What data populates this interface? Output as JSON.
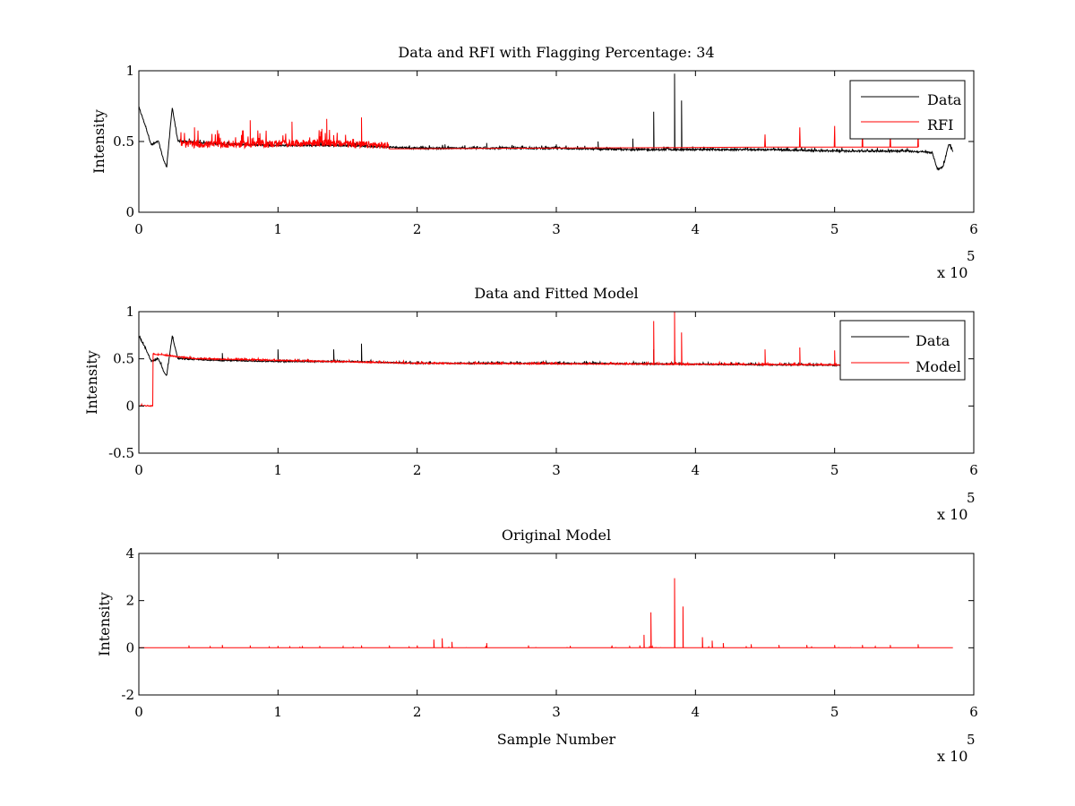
{
  "colors": {
    "data": "#000000",
    "rfi": "#ff0000",
    "model": "#ff0000",
    "axes": "#000000",
    "background": "#ffffff"
  },
  "chart_data": [
    {
      "type": "line",
      "title": "Data and RFI with Flagging Percentage: 34",
      "xlabel": "",
      "ylabel": "Intensity",
      "xlim": [
        0,
        600000
      ],
      "ylim": [
        0,
        1
      ],
      "xticks": [
        "0",
        "1",
        "2",
        "3",
        "4",
        "5",
        "6"
      ],
      "yticks": [
        "0",
        "0.5",
        "1"
      ],
      "x_multiplier": "x 10",
      "x_multiplier_exponent": "5",
      "legend": {
        "placement": "top-right",
        "entries": [
          "Data",
          "RFI"
        ]
      },
      "grid": false,
      "series": [
        {
          "name": "Data",
          "color": "#000000",
          "baseline": [
            [
              0,
              0.74
            ],
            [
              5000,
              0.6
            ],
            [
              9000,
              0.47
            ],
            [
              14000,
              0.5
            ],
            [
              18000,
              0.36
            ],
            [
              20000,
              0.32
            ],
            [
              24000,
              0.74
            ],
            [
              28000,
              0.5
            ],
            [
              60000,
              0.48
            ],
            [
              100000,
              0.47
            ],
            [
              150000,
              0.47
            ],
            [
              200000,
              0.45
            ],
            [
              300000,
              0.45
            ],
            [
              350000,
              0.44
            ],
            [
              400000,
              0.44
            ],
            [
              450000,
              0.44
            ],
            [
              500000,
              0.43
            ],
            [
              550000,
              0.43
            ],
            [
              570000,
              0.42
            ],
            [
              574000,
              0.3
            ],
            [
              578000,
              0.32
            ],
            [
              582000,
              0.48
            ],
            [
              585000,
              0.43
            ]
          ],
          "spikes": [
            [
              370000,
              0.71
            ],
            [
              385000,
              0.98
            ],
            [
              390000,
              0.79
            ],
            [
              355000,
              0.52
            ],
            [
              330000,
              0.5
            ],
            [
              300000,
              0.48
            ],
            [
              250000,
              0.49
            ],
            [
              220000,
              0.48
            ]
          ]
        },
        {
          "name": "RFI",
          "color": "#ff0000",
          "baseline": [
            [
              30000,
              0.47
            ],
            [
              80000,
              0.47
            ],
            [
              130000,
              0.48
            ],
            [
              180000,
              0.46
            ]
          ],
          "spikes": [
            [
              40000,
              0.6
            ],
            [
              80000,
              0.65
            ],
            [
              110000,
              0.64
            ],
            [
              135000,
              0.66
            ],
            [
              160000,
              0.67
            ],
            [
              450000,
              0.55
            ],
            [
              475000,
              0.6
            ],
            [
              500000,
              0.61
            ],
            [
              520000,
              0.59
            ],
            [
              540000,
              0.55
            ],
            [
              560000,
              0.56
            ]
          ]
        }
      ]
    },
    {
      "type": "line",
      "title": "Data and Fitted Model",
      "xlabel": "",
      "ylabel": "Intensity",
      "xlim": [
        0,
        600000
      ],
      "ylim": [
        -0.5,
        1
      ],
      "xticks": [
        "0",
        "1",
        "2",
        "3",
        "4",
        "5",
        "6"
      ],
      "yticks": [
        "-0.5",
        "0",
        "0.5",
        "1"
      ],
      "x_multiplier": "x 10",
      "x_multiplier_exponent": "5",
      "legend": {
        "placement": "top-right",
        "entries": [
          "Data",
          "Model"
        ]
      },
      "grid": false,
      "series": [
        {
          "name": "Data",
          "color": "#000000",
          "baseline": [
            [
              0,
              0.74
            ],
            [
              5000,
              0.6
            ],
            [
              9000,
              0.47
            ],
            [
              14000,
              0.5
            ],
            [
              18000,
              0.36
            ],
            [
              20000,
              0.32
            ],
            [
              24000,
              0.74
            ],
            [
              28000,
              0.5
            ],
            [
              60000,
              0.48
            ],
            [
              100000,
              0.47
            ],
            [
              150000,
              0.47
            ],
            [
              200000,
              0.45
            ],
            [
              300000,
              0.45
            ],
            [
              400000,
              0.44
            ],
            [
              500000,
              0.43
            ],
            [
              550000,
              0.43
            ],
            [
              570000,
              0.42
            ],
            [
              574000,
              0.3
            ],
            [
              578000,
              0.32
            ],
            [
              582000,
              0.48
            ],
            [
              585000,
              0.43
            ]
          ],
          "spikes": [
            [
              60000,
              0.56
            ],
            [
              100000,
              0.6
            ],
            [
              140000,
              0.6
            ],
            [
              160000,
              0.66
            ],
            [
              370000,
              0.6
            ],
            [
              385000,
              0.55
            ]
          ]
        },
        {
          "name": "Model",
          "color": "#ff0000",
          "baseline": [
            [
              0,
              0
            ],
            [
              10000,
              0
            ],
            [
              10000,
              0.55
            ],
            [
              40000,
              0.5
            ],
            [
              200000,
              0.45
            ],
            [
              400000,
              0.44
            ],
            [
              560000,
              0.43
            ]
          ],
          "spikes": [
            [
              370000,
              0.9
            ],
            [
              385000,
              1.0
            ],
            [
              390000,
              0.78
            ],
            [
              450000,
              0.6
            ],
            [
              475000,
              0.62
            ],
            [
              500000,
              0.59
            ]
          ]
        }
      ]
    },
    {
      "type": "line",
      "title": "Original Model",
      "xlabel": "Sample Number",
      "ylabel": "Intensity",
      "xlim": [
        0,
        600000
      ],
      "ylim": [
        -2,
        4
      ],
      "xticks": [
        "0",
        "1",
        "2",
        "3",
        "4",
        "5",
        "6"
      ],
      "yticks": [
        "-2",
        "0",
        "2",
        "4"
      ],
      "x_multiplier": "x 10",
      "x_multiplier_exponent": "5",
      "grid": false,
      "series": [
        {
          "color": "#ff0000",
          "baseline": [
            [
              0,
              0
            ],
            [
              585000,
              0
            ]
          ],
          "spikes": [
            [
              36000,
              0.1
            ],
            [
              60000,
              0.12
            ],
            [
              80000,
              0.1
            ],
            [
              100000,
              0.08
            ],
            [
              130000,
              0.08
            ],
            [
              160000,
              0.1
            ],
            [
              180000,
              0.1
            ],
            [
              200000,
              0.1
            ],
            [
              212000,
              0.35
            ],
            [
              218000,
              0.4
            ],
            [
              225000,
              0.25
            ],
            [
              250000,
              0.2
            ],
            [
              280000,
              0.1
            ],
            [
              310000,
              0.08
            ],
            [
              340000,
              0.1
            ],
            [
              360000,
              0.1
            ],
            [
              363000,
              0.55
            ],
            [
              368000,
              1.5
            ],
            [
              385000,
              2.95
            ],
            [
              391000,
              1.75
            ],
            [
              405000,
              0.45
            ],
            [
              412000,
              0.3
            ],
            [
              420000,
              0.2
            ],
            [
              440000,
              0.15
            ],
            [
              460000,
              0.12
            ],
            [
              480000,
              0.12
            ],
            [
              500000,
              0.12
            ],
            [
              520000,
              0.12
            ],
            [
              540000,
              0.12
            ],
            [
              560000,
              0.15
            ]
          ]
        }
      ]
    }
  ]
}
